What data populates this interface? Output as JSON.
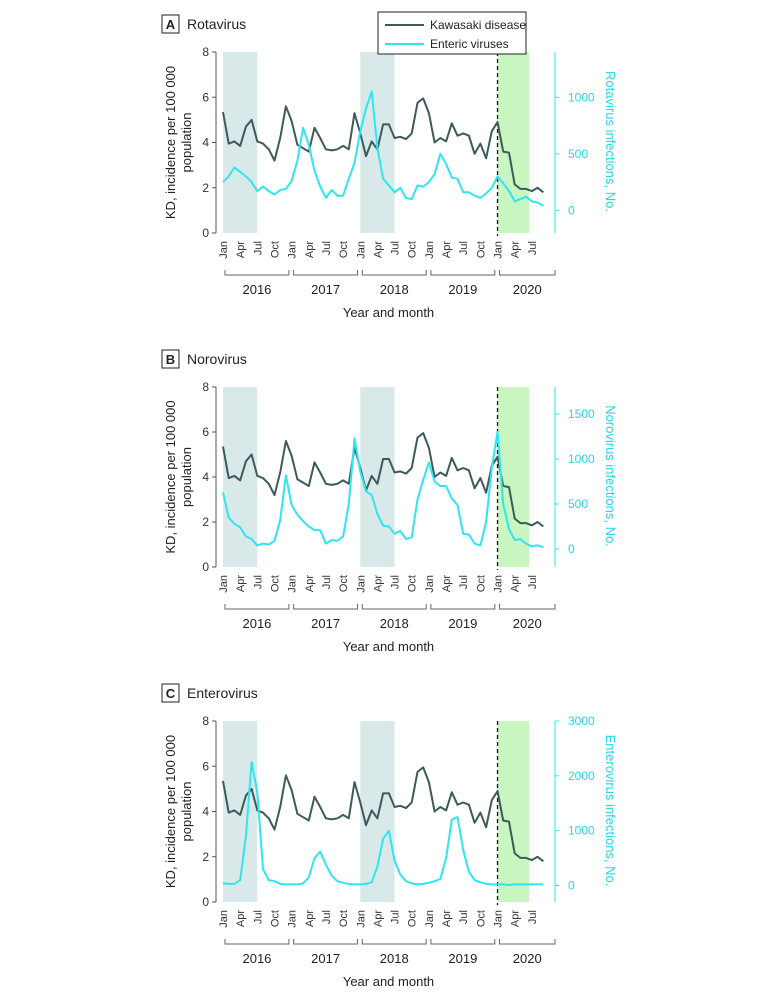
{
  "legend": {
    "kd_label": "Kawasaki disease",
    "enteric_label": "Enteric viruses"
  },
  "colors": {
    "kd": "#3c5a5a",
    "enteric": "#2ee6f2",
    "winter_shade": "#d9e8e8",
    "covid_shade": "#c8f5c0"
  },
  "x_axis": {
    "label": "Year and month",
    "month_ticks": [
      "Jan",
      "Apr",
      "Jul",
      "Oct"
    ],
    "years": [
      "2016",
      "2017",
      "2018",
      "2019",
      "2020"
    ]
  },
  "left_axis_label": {
    "line1": "KD, incidence per 100 000",
    "line2": "population"
  },
  "chart_data": [
    {
      "type": "line",
      "panel": "A",
      "title": "Rotavirus",
      "ylabel_left": "KD, incidence per 100 000 population",
      "ylabel_right": "Rotavirus infections, No.",
      "ylim_left": [
        0,
        8
      ],
      "ylim_right": [
        -200,
        1400
      ],
      "yticks_left": [
        0,
        2,
        4,
        6,
        8
      ],
      "yticks_right": [
        0,
        500,
        1000
      ],
      "shaded_periods": [
        {
          "start": 0,
          "end": 6,
          "kind": "winter"
        },
        {
          "start": 24,
          "end": 30,
          "kind": "winter"
        },
        {
          "start": 48,
          "end": 53.5,
          "kind": "covid"
        }
      ],
      "dashed_line_at": 48,
      "series": [
        {
          "name": "Kawasaki disease",
          "axis": "left",
          "values": [
            5.35,
            3.95,
            4.05,
            3.85,
            4.7,
            5.0,
            4.05,
            3.95,
            3.7,
            3.2,
            4.2,
            5.6,
            4.95,
            3.9,
            3.75,
            3.6,
            4.65,
            4.2,
            3.7,
            3.65,
            3.7,
            3.85,
            3.7,
            5.3,
            4.4,
            3.4,
            4.05,
            3.7,
            4.8,
            4.8,
            4.2,
            4.25,
            4.15,
            4.4,
            5.75,
            5.95,
            5.3,
            4.0,
            4.2,
            4.05,
            4.85,
            4.3,
            4.4,
            4.3,
            3.5,
            3.95,
            3.3,
            4.5,
            4.9,
            3.6,
            3.55,
            2.15,
            1.95,
            1.95,
            1.85,
            2.0,
            1.8
          ]
        },
        {
          "name": "Rotavirus infections",
          "axis": "right",
          "values": [
            250,
            300,
            380,
            340,
            300,
            250,
            170,
            210,
            170,
            140,
            180,
            190,
            260,
            440,
            730,
            580,
            350,
            210,
            110,
            180,
            130,
            130,
            280,
            420,
            700,
            900,
            1050,
            550,
            280,
            220,
            160,
            200,
            110,
            100,
            220,
            210,
            250,
            320,
            500,
            410,
            290,
            280,
            160,
            160,
            130,
            110,
            150,
            200,
            300,
            240,
            170,
            80,
            100,
            120,
            80,
            70,
            40
          ]
        }
      ]
    },
    {
      "type": "line",
      "panel": "B",
      "title": "Norovirus",
      "ylabel_left": "KD, incidence per 100 000 population",
      "ylabel_right": "Norovirus infections, No.",
      "ylim_left": [
        0,
        8
      ],
      "ylim_right": [
        -200,
        1800
      ],
      "yticks_left": [
        0,
        2,
        4,
        6,
        8
      ],
      "yticks_right": [
        0,
        500,
        1000,
        1500
      ],
      "shaded_periods": [
        {
          "start": 0,
          "end": 6,
          "kind": "winter"
        },
        {
          "start": 24,
          "end": 30,
          "kind": "winter"
        },
        {
          "start": 48,
          "end": 53.5,
          "kind": "covid"
        }
      ],
      "dashed_line_at": 48,
      "series": [
        {
          "name": "Kawasaki disease",
          "axis": "left",
          "values": [
            5.35,
            3.95,
            4.05,
            3.85,
            4.7,
            5.0,
            4.05,
            3.95,
            3.7,
            3.2,
            4.2,
            5.6,
            4.95,
            3.9,
            3.75,
            3.6,
            4.65,
            4.2,
            3.7,
            3.65,
            3.7,
            3.85,
            3.7,
            5.3,
            4.4,
            3.4,
            4.05,
            3.7,
            4.8,
            4.8,
            4.2,
            4.25,
            4.15,
            4.4,
            5.75,
            5.95,
            5.3,
            4.0,
            4.2,
            4.05,
            4.85,
            4.3,
            4.4,
            4.3,
            3.5,
            3.95,
            3.3,
            4.5,
            4.9,
            3.6,
            3.55,
            2.15,
            1.95,
            1.95,
            1.85,
            2.0,
            1.8
          ]
        },
        {
          "name": "Norovirus infections",
          "axis": "right",
          "values": [
            630,
            350,
            280,
            240,
            140,
            110,
            40,
            60,
            50,
            90,
            320,
            820,
            490,
            380,
            310,
            250,
            210,
            210,
            60,
            100,
            90,
            140,
            500,
            1230,
            860,
            640,
            600,
            390,
            260,
            250,
            170,
            200,
            110,
            130,
            550,
            770,
            960,
            750,
            700,
            700,
            560,
            490,
            170,
            160,
            60,
            40,
            300,
            900,
            1300,
            500,
            220,
            100,
            110,
            60,
            30,
            40,
            20
          ]
        }
      ]
    },
    {
      "type": "line",
      "panel": "C",
      "title": "Enterovirus",
      "ylabel_left": "KD, incidence per 100 000 population",
      "ylabel_right": "Enterovirus infections, No.",
      "ylim_left": [
        0,
        8
      ],
      "ylim_right": [
        -300,
        3000
      ],
      "yticks_left": [
        0,
        2,
        4,
        6,
        8
      ],
      "yticks_right": [
        0,
        1000,
        2000,
        3000
      ],
      "shaded_periods": [
        {
          "start": 0,
          "end": 6,
          "kind": "winter"
        },
        {
          "start": 24,
          "end": 30,
          "kind": "winter"
        },
        {
          "start": 48,
          "end": 53.5,
          "kind": "covid"
        }
      ],
      "dashed_line_at": 48,
      "series": [
        {
          "name": "Kawasaki disease",
          "axis": "left",
          "values": [
            5.35,
            3.95,
            4.05,
            3.85,
            4.7,
            5.0,
            4.05,
            3.95,
            3.7,
            3.2,
            4.2,
            5.6,
            4.95,
            3.9,
            3.75,
            3.6,
            4.65,
            4.2,
            3.7,
            3.65,
            3.7,
            3.85,
            3.7,
            5.3,
            4.4,
            3.4,
            4.05,
            3.7,
            4.8,
            4.8,
            4.2,
            4.25,
            4.15,
            4.4,
            5.75,
            5.95,
            5.3,
            4.0,
            4.2,
            4.05,
            4.85,
            4.3,
            4.4,
            4.3,
            3.5,
            3.95,
            3.3,
            4.5,
            4.9,
            3.6,
            3.55,
            2.15,
            1.95,
            1.95,
            1.85,
            2.0,
            1.8
          ]
        },
        {
          "name": "Enterovirus infections",
          "axis": "right",
          "values": [
            40,
            30,
            30,
            100,
            900,
            2250,
            1700,
            300,
            100,
            80,
            30,
            20,
            20,
            20,
            40,
            150,
            500,
            620,
            380,
            180,
            80,
            50,
            30,
            20,
            20,
            30,
            60,
            350,
            850,
            1000,
            450,
            200,
            80,
            40,
            20,
            30,
            50,
            80,
            120,
            500,
            1200,
            1250,
            650,
            250,
            100,
            60,
            30,
            20,
            20,
            20,
            10,
            20,
            20,
            20,
            20,
            20,
            20
          ]
        }
      ]
    }
  ]
}
